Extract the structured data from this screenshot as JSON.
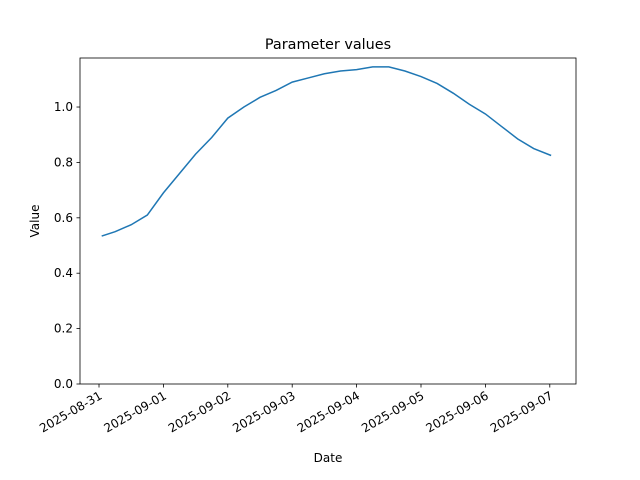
{
  "chart_data": {
    "type": "line",
    "title": "Parameter values",
    "x_label": "Date",
    "y_label": "Value",
    "x": [
      "2025-08-31T01:00",
      "2025-08-31T06:00",
      "2025-08-31T12:00",
      "2025-08-31T18:00",
      "2025-09-01T00:00",
      "2025-09-01T06:00",
      "2025-09-01T12:00",
      "2025-09-01T18:00",
      "2025-09-02T00:00",
      "2025-09-02T06:00",
      "2025-09-02T12:00",
      "2025-09-02T18:00",
      "2025-09-03T00:00",
      "2025-09-03T06:00",
      "2025-09-03T12:00",
      "2025-09-03T18:00",
      "2025-09-04T00:00",
      "2025-09-04T06:00",
      "2025-09-04T12:00",
      "2025-09-04T18:00",
      "2025-09-05T00:00",
      "2025-09-05T06:00",
      "2025-09-05T12:00",
      "2025-09-05T18:00",
      "2025-09-06T00:00",
      "2025-09-06T06:00",
      "2025-09-06T12:00",
      "2025-09-06T18:00",
      "2025-09-07T00:30"
    ],
    "series": [
      {
        "name": "Value",
        "color": "#1f77b4",
        "values": [
          0.534,
          0.55,
          0.575,
          0.61,
          0.69,
          0.76,
          0.83,
          0.89,
          0.96,
          1.0,
          1.035,
          1.06,
          1.09,
          1.105,
          1.12,
          1.13,
          1.135,
          1.145,
          1.145,
          1.13,
          1.11,
          1.085,
          1.05,
          1.01,
          0.975,
          0.93,
          0.885,
          0.85,
          0.825
        ]
      }
    ],
    "xlim": [
      "2025-08-30T16:55",
      "2025-09-07T09:46"
    ],
    "xticks": [
      "2025-08-31",
      "2025-09-01",
      "2025-09-02",
      "2025-09-03",
      "2025-09-04",
      "2025-09-05",
      "2025-09-06",
      "2025-09-07"
    ],
    "ylim": [
      0,
      1.177
    ],
    "yticks": [
      {
        "value": 0,
        "label": "0.0"
      },
      {
        "value": 0.2,
        "label": "0.2"
      },
      {
        "value": 0.4,
        "label": "0.4"
      },
      {
        "value": 0.6,
        "label": "0.6"
      },
      {
        "value": 0.8,
        "label": "0.8"
      },
      {
        "value": 1,
        "label": "1.0"
      }
    ],
    "grid": false
  }
}
